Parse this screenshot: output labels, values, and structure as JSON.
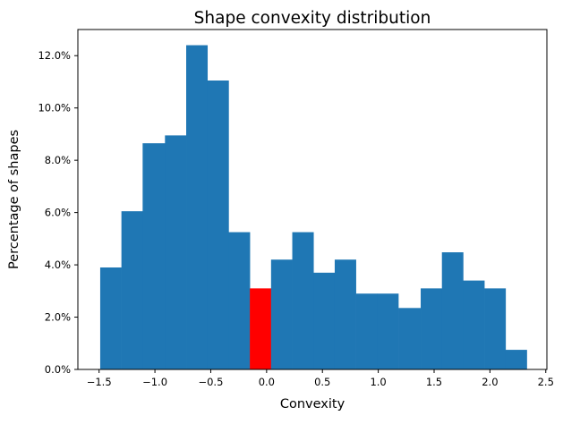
{
  "chart_data": {
    "type": "bar",
    "subtype": "histogram",
    "title": "Shape convexity distribution",
    "xlabel": "Convexity",
    "ylabel": "Percentage of shapes",
    "xlim": [
      -1.69,
      2.51
    ],
    "ylim": [
      0.0,
      0.13
    ],
    "xticks": [
      -1.5,
      -1.0,
      -0.5,
      0.0,
      0.5,
      1.0,
      1.5,
      2.0,
      2.5
    ],
    "xtick_labels": [
      "−1.5",
      "−1.0",
      "−0.5",
      "0.0",
      "0.5",
      "1.0",
      "1.5",
      "2.0",
      "2.5"
    ],
    "yticks": [
      0.0,
      0.02,
      0.04,
      0.06,
      0.08,
      0.1,
      0.12
    ],
    "ytick_labels": [
      "0.0%",
      "2.0%",
      "4.0%",
      "6.0%",
      "8.0%",
      "10.0%",
      "12.0%"
    ],
    "grid": false,
    "legend": null,
    "bin_edges": [
      -1.49,
      -1.3,
      -1.11,
      -0.91,
      -0.72,
      -0.53,
      -0.34,
      -0.15,
      0.04,
      0.23,
      0.42,
      0.61,
      0.8,
      0.99,
      1.18,
      1.38,
      1.57,
      1.76,
      1.95,
      2.14,
      2.33
    ],
    "values": [
      0.039,
      0.0605,
      0.0865,
      0.0895,
      0.124,
      0.1105,
      0.0525,
      0.031,
      0.042,
      0.0525,
      0.037,
      0.042,
      0.029,
      0.029,
      0.0235,
      0.031,
      0.0448,
      0.034,
      0.031,
      0.0075
    ],
    "colors": {
      "default": "#1f77b4",
      "highlight": "#ff0000"
    },
    "highlight_bin_index": 7
  }
}
